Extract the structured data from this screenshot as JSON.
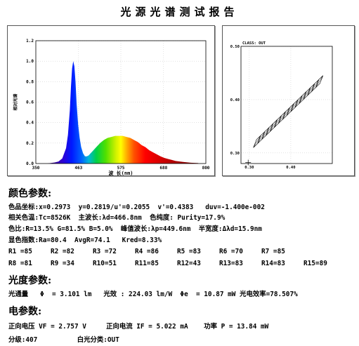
{
  "report": {
    "title": "光源光谱测试报告"
  },
  "chart_data": [
    {
      "type": "area",
      "xlabel": "波 长(nm)",
      "ylabel": "相对光谱",
      "xlim": [
        350,
        800
      ],
      "ylim": [
        0,
        1.2
      ],
      "x_ticks": [
        "350",
        "463",
        "575",
        "688",
        "800"
      ],
      "y_ticks": [
        "0.0",
        "0.2",
        "0.4",
        "0.6",
        "0.8",
        "1.0",
        "1.2"
      ],
      "fill": "visible-spectrum-gradient",
      "x": [
        380,
        400,
        410,
        420,
        430,
        435,
        440,
        443,
        446,
        449,
        452,
        455,
        458,
        462,
        466,
        470,
        475,
        480,
        485,
        490,
        500,
        510,
        520,
        530,
        540,
        550,
        560,
        570,
        580,
        590,
        600,
        610,
        620,
        630,
        640,
        650,
        660,
        670,
        680,
        690,
        700,
        710,
        720,
        740,
        760,
        780
      ],
      "values": [
        0.0,
        0.01,
        0.02,
        0.05,
        0.15,
        0.28,
        0.52,
        0.75,
        0.93,
        1.0,
        0.95,
        0.8,
        0.58,
        0.38,
        0.25,
        0.16,
        0.1,
        0.07,
        0.07,
        0.08,
        0.12,
        0.16,
        0.2,
        0.23,
        0.25,
        0.26,
        0.27,
        0.27,
        0.27,
        0.26,
        0.25,
        0.23,
        0.21,
        0.18,
        0.16,
        0.13,
        0.11,
        0.09,
        0.07,
        0.055,
        0.045,
        0.035,
        0.025,
        0.015,
        0.008,
        0.004
      ]
    },
    {
      "type": "scatter",
      "title": "CLASS: OUT",
      "xlim": [
        0.28,
        0.5
      ],
      "ylim": [
        0.28,
        0.5
      ],
      "x_ticks": [
        "0.30",
        "0.40"
      ],
      "y_ticks": [
        "0.30",
        "0.40",
        "0.50"
      ],
      "point": {
        "x": 0.2973,
        "y": 0.2819
      },
      "bins": [
        {
          "x": [
            0.31,
            0.32,
            0.3275,
            0.3175
          ],
          "y": [
            0.31,
            0.3175,
            0.3325,
            0.325
          ]
        },
        {
          "x": [
            0.32,
            0.33,
            0.3375,
            0.3275
          ],
          "y": [
            0.3175,
            0.325,
            0.34,
            0.3325
          ]
        },
        {
          "x": [
            0.33,
            0.34,
            0.3475,
            0.3375
          ],
          "y": [
            0.325,
            0.3325,
            0.3475,
            0.34
          ]
        },
        {
          "x": [
            0.34,
            0.35,
            0.3575,
            0.3475
          ],
          "y": [
            0.3325,
            0.34,
            0.355,
            0.3475
          ]
        },
        {
          "x": [
            0.35,
            0.36,
            0.3675,
            0.3575
          ],
          "y": [
            0.34,
            0.3475,
            0.3625,
            0.355
          ]
        },
        {
          "x": [
            0.36,
            0.37,
            0.3775,
            0.3675
          ],
          "y": [
            0.3475,
            0.355,
            0.37,
            0.3625
          ]
        },
        {
          "x": [
            0.37,
            0.38,
            0.3875,
            0.3775
          ],
          "y": [
            0.355,
            0.3625,
            0.3775,
            0.37
          ]
        },
        {
          "x": [
            0.38,
            0.39,
            0.3975,
            0.3875
          ],
          "y": [
            0.3625,
            0.37,
            0.385,
            0.3775
          ]
        },
        {
          "x": [
            0.39,
            0.4,
            0.4075,
            0.3975
          ],
          "y": [
            0.37,
            0.3775,
            0.3925,
            0.385
          ]
        },
        {
          "x": [
            0.4,
            0.41,
            0.4175,
            0.4075
          ],
          "y": [
            0.3775,
            0.385,
            0.4,
            0.3925
          ]
        },
        {
          "x": [
            0.41,
            0.42,
            0.4275,
            0.4175
          ],
          "y": [
            0.385,
            0.3925,
            0.4075,
            0.4
          ]
        },
        {
          "x": [
            0.42,
            0.43,
            0.4375,
            0.4275
          ],
          "y": [
            0.3925,
            0.4,
            0.415,
            0.4075
          ]
        },
        {
          "x": [
            0.43,
            0.44,
            0.4475,
            0.4375
          ],
          "y": [
            0.4,
            0.4075,
            0.4225,
            0.415
          ]
        },
        {
          "x": [
            0.44,
            0.45,
            0.4575,
            0.4475
          ],
          "y": [
            0.4075,
            0.415,
            0.43,
            0.4225
          ]
        },
        {
          "x": [
            0.45,
            0.46,
            0.4675,
            0.4575
          ],
          "y": [
            0.415,
            0.4225,
            0.4375,
            0.43
          ]
        },
        {
          "x": [
            0.46,
            0.47,
            0.4775,
            0.4675
          ],
          "y": [
            0.4225,
            0.43,
            0.445,
            0.4375
          ]
        }
      ]
    }
  ],
  "color_params": {
    "heading": "颜色参数:",
    "line1": "色品坐标:x=0.2973  y=0.2819/u'=0.2055  v'=0.4383   duv=-1.400e-002",
    "line2": "相关色温:Tc=8526K  主波长:λd=466.8nm  色纯度: Purity=17.9%",
    "line3": "色比:R=13.5% G=81.5% B=5.0%  峰值波长:λp=449.6nm  半宽度:Δλd=15.9nm",
    "line4": "显色指数:Ra=80.4  AvgR=74.1   Kred=8.33%",
    "ri_row1": [
      "R1 =85",
      "R2 =82",
      "R3 =72",
      "R4 =86",
      "R5 =83",
      "R6 =70",
      "R7 =85"
    ],
    "ri_row2": [
      "R8 =81",
      "R9 =34",
      "R10=51",
      "R11=85",
      "R12=43",
      "R13=83",
      "R14=83",
      "R15=89"
    ]
  },
  "photometric": {
    "heading": "光度参数:",
    "line1": "光通量   Φ  = 3.101 lm   光效 : 224.03 lm/W  Φe  = 10.87 mW 光电效率=78.507%"
  },
  "electrical": {
    "heading": "电参数:",
    "line1": "正向电压 VF = 2.757 V     正向电流 IF = 5.022 mA    功率 P = 13.84 mW",
    "line2": "分级:407          白光分类:OUT"
  }
}
